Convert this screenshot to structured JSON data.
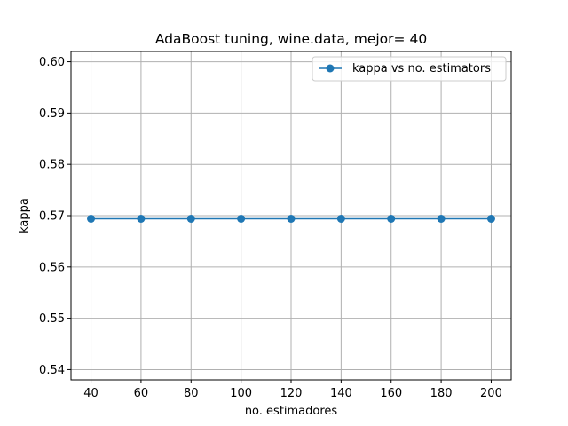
{
  "chart_data": {
    "type": "line",
    "title": "AdaBoost tuning, wine.data, mejor= 40",
    "xlabel": "no. estimadores",
    "ylabel": "kappa",
    "x": [
      40,
      60,
      80,
      100,
      120,
      140,
      160,
      180,
      200
    ],
    "xticks": [
      40,
      60,
      80,
      100,
      120,
      140,
      160,
      180,
      200
    ],
    "xlim": [
      32,
      208
    ],
    "yticks": [
      0.54,
      0.55,
      0.56,
      0.57,
      0.58,
      0.59,
      0.6
    ],
    "ylim": [
      0.538,
      0.602
    ],
    "series": [
      {
        "name": "kappa vs no. estimators",
        "values": [
          0.5694,
          0.5694,
          0.5694,
          0.5694,
          0.5694,
          0.5694,
          0.5694,
          0.5694,
          0.5694
        ],
        "color": "#1f77b4",
        "marker": "circle"
      }
    ],
    "grid": true,
    "legend": "top-right"
  }
}
